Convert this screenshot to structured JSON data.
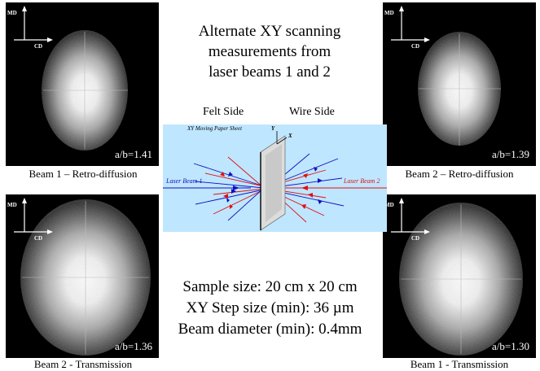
{
  "title_lines": [
    "Alternate XY scanning",
    "measurements from",
    "laser beams 1 and 2"
  ],
  "sides": {
    "felt": "Felt Side",
    "wire": "Wire Side"
  },
  "diagram": {
    "sheet_label": "XY Moving Paper Sheet",
    "laser1": "Laser Beam 1",
    "laser2": "Laser Beam 2",
    "axis_y": "Y",
    "axis_x": "X"
  },
  "axes": {
    "md": "MD",
    "cd": "CD"
  },
  "panels": [
    {
      "id": "tl",
      "ratio": "a/b=1.41",
      "caption": "Beam 1 – Retro-diffusion"
    },
    {
      "id": "tr",
      "ratio": "a/b=1.39",
      "caption": "Beam 2 – Retro-diffusion"
    },
    {
      "id": "bl",
      "ratio": "a/b=1.36",
      "caption": "Beam 2 - Transmission"
    },
    {
      "id": "br",
      "ratio": "a/b=1.30",
      "caption": "Beam 1 - Transmission"
    }
  ],
  "specs": [
    "Sample size: 20 cm x 20 cm",
    "XY Step size (min): 36 µm",
    "Beam diameter (min): 0.4mm"
  ],
  "colors": {
    "diagram_bg": "#bfe6ff",
    "beam1": "#1010c0",
    "beam2": "#e01010"
  }
}
